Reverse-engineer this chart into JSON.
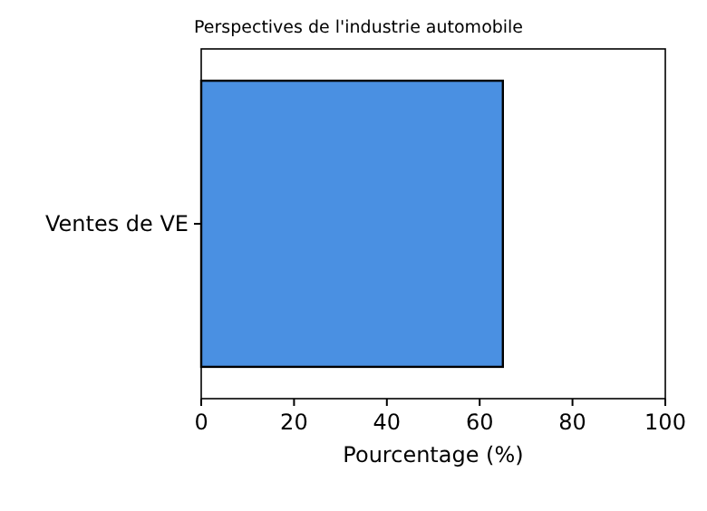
{
  "chart_data": {
    "type": "bar",
    "orientation": "horizontal",
    "title": "Perspectives de l'industrie automobile",
    "xlabel": "Pourcentage (%)",
    "categories": [
      "Ventes de VE"
    ],
    "values": [
      65
    ],
    "color": "#4a90e2",
    "xlim": [
      0,
      100
    ],
    "xticks": [
      0,
      20,
      40,
      60,
      80,
      100
    ],
    "grid": false
  }
}
